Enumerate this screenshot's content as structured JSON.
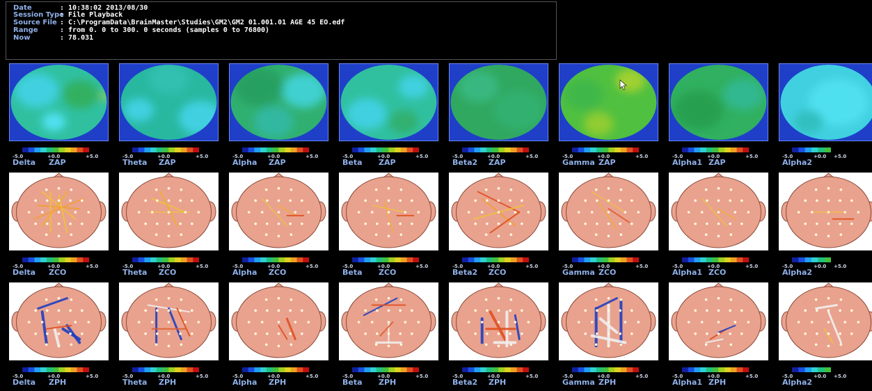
{
  "session_info": {
    "rows": [
      {
        "key": "Date",
        "value": ": 10:38:02 2013/08/30"
      },
      {
        "key": "Session Type",
        "value": ": File Playback"
      },
      {
        "key": "Source File",
        "value": ": C:\\ProgramData\\BrainMaster\\Studies\\GM2\\GM2 01.001.01 AGE 45  EO.edf"
      },
      {
        "key": "Range",
        "value": ": from 0.  0 to 300.  0 seconds (samples 0 to 76800)"
      },
      {
        "key": "Now",
        "value": ": 78.031"
      }
    ]
  },
  "scale": {
    "min": "-5.0",
    "mid": "+0.0",
    "max": "+5.0"
  },
  "bands": [
    "Delta",
    "Theta",
    "Alpha",
    "Beta",
    "Beta2",
    "Gamma",
    "Alpha1",
    "Alpha2"
  ],
  "rows": [
    {
      "metric": "ZAP",
      "kind": "topomap"
    },
    {
      "metric": "ZCO",
      "kind": "head"
    },
    {
      "metric": "ZPH",
      "kind": "head"
    }
  ],
  "colors": {
    "label": "#8fb0e8",
    "topo_background": "#1f3fc9",
    "head_skin": "#e9a28e",
    "head_outline": "#8a4a3a",
    "colormap": [
      "#1020a0",
      "#1a50e0",
      "#20a0f0",
      "#30d0d0",
      "#20c080",
      "#40c040",
      "#a0d020",
      "#e0d020",
      "#f0a020",
      "#e05020",
      "#c01010"
    ]
  },
  "topomaps": [
    {
      "band": "Delta",
      "base": "#30c0a0",
      "blobs": [
        [
          "#40d0e0",
          0.28,
          0.35,
          0.22
        ],
        [
          "#50e0f0",
          0.45,
          0.75,
          0.12
        ],
        [
          "#30b060",
          0.72,
          0.4,
          0.18
        ],
        [
          "#a0d040",
          0.97,
          0.42,
          0.05
        ]
      ]
    },
    {
      "band": "Theta",
      "base": "#28b8a0",
      "blobs": [
        [
          "#40d0e0",
          0.82,
          0.7,
          0.22
        ],
        [
          "#40d0e0",
          0.2,
          0.6,
          0.15
        ],
        [
          "#30c0b0",
          0.5,
          0.2,
          0.2
        ]
      ]
    },
    {
      "band": "Alpha",
      "base": "#30b070",
      "blobs": [
        [
          "#40d0d0",
          0.75,
          0.35,
          0.22
        ],
        [
          "#28a060",
          0.3,
          0.3,
          0.25
        ],
        [
          "#30b8a0",
          0.45,
          0.75,
          0.2
        ]
      ]
    },
    {
      "band": "Beta",
      "base": "#30c0a0",
      "blobs": [
        [
          "#40d0e0",
          0.28,
          0.65,
          0.2
        ],
        [
          "#40d0e0",
          0.75,
          0.3,
          0.15
        ],
        [
          "#30b070",
          0.65,
          0.75,
          0.15
        ]
      ]
    },
    {
      "band": "Beta2",
      "base": "#30a860",
      "blobs": [
        [
          "#38b880",
          0.3,
          0.3,
          0.2
        ],
        [
          "#30b070",
          0.7,
          0.6,
          0.25
        ]
      ]
    },
    {
      "band": "Gamma",
      "base": "#50c040",
      "blobs": [
        [
          "#a0d030",
          0.72,
          0.22,
          0.15
        ],
        [
          "#90cc30",
          0.4,
          0.78,
          0.15
        ],
        [
          "#40b848",
          0.25,
          0.4,
          0.2
        ]
      ]
    },
    {
      "band": "Alpha1",
      "base": "#30b060",
      "blobs": [
        [
          "#30b890",
          0.75,
          0.4,
          0.2
        ],
        [
          "#28a050",
          0.3,
          0.6,
          0.25
        ]
      ]
    },
    {
      "band": "Alpha2",
      "base": "#40d0e0",
      "blobs": [
        [
          "#50e0f0",
          0.6,
          0.5,
          0.3
        ],
        [
          "#30c0c0",
          0.3,
          0.75,
          0.15
        ]
      ]
    }
  ],
  "connections": {
    "ZCO": [
      {
        "band": "Delta",
        "lines": [
          [
            0.3,
            0.2,
            0.7,
            0.6,
            "#f0c040",
            2
          ],
          [
            0.25,
            0.4,
            0.75,
            0.45,
            "#f0a030",
            2
          ],
          [
            0.4,
            0.2,
            0.4,
            0.8,
            "#f0c040",
            2
          ],
          [
            0.6,
            0.2,
            0.3,
            0.7,
            "#f0b030",
            2
          ],
          [
            0.2,
            0.6,
            0.8,
            0.3,
            "#f0a040",
            2
          ],
          [
            0.5,
            0.25,
            0.6,
            0.8,
            "#f0c040",
            2
          ]
        ]
      },
      {
        "band": "Theta",
        "lines": [
          [
            0.3,
            0.3,
            0.7,
            0.5,
            "#f0c040",
            2
          ],
          [
            0.4,
            0.2,
            0.6,
            0.7,
            "#f0b030",
            2
          ],
          [
            0.25,
            0.5,
            0.75,
            0.5,
            "#f0c040",
            1.5
          ]
        ]
      },
      {
        "band": "Alpha",
        "lines": [
          [
            0.3,
            0.3,
            0.6,
            0.7,
            "#f0c040",
            1.5
          ],
          [
            0.5,
            0.4,
            0.7,
            0.55,
            "#f0b030",
            1.5
          ],
          [
            0.6,
            0.55,
            0.8,
            0.55,
            "#e05020",
            2
          ]
        ]
      },
      {
        "band": "Beta",
        "lines": [
          [
            0.3,
            0.4,
            0.7,
            0.5,
            "#f0c040",
            1.5
          ],
          [
            0.45,
            0.35,
            0.55,
            0.8,
            "#f0b030",
            1.5
          ],
          [
            0.6,
            0.55,
            0.8,
            0.55,
            "#e05020",
            2
          ]
        ]
      },
      {
        "band": "Beta2",
        "lines": [
          [
            0.25,
            0.2,
            0.75,
            0.5,
            "#e05020",
            2
          ],
          [
            0.3,
            0.3,
            0.7,
            0.7,
            "#f0a030",
            2
          ],
          [
            0.2,
            0.6,
            0.8,
            0.4,
            "#f0c040",
            2
          ],
          [
            0.4,
            0.8,
            0.75,
            0.5,
            "#e05020",
            2
          ]
        ]
      },
      {
        "band": "Gamma",
        "lines": [
          [
            0.3,
            0.2,
            0.7,
            0.5,
            "#f0c040",
            1.5
          ],
          [
            0.5,
            0.45,
            0.75,
            0.65,
            "#e06030",
            2
          ],
          [
            0.35,
            0.3,
            0.6,
            0.75,
            "#f0b030",
            1.5
          ]
        ]
      },
      {
        "band": "Alpha1",
        "lines": [
          [
            0.3,
            0.3,
            0.6,
            0.7,
            "#f0c040",
            1.5
          ],
          [
            0.5,
            0.45,
            0.7,
            0.6,
            "#f0b030",
            1.5
          ]
        ]
      },
      {
        "band": "Alpha2",
        "lines": [
          [
            0.3,
            0.5,
            0.7,
            0.5,
            "#f0c040",
            1.5
          ],
          [
            0.55,
            0.6,
            0.8,
            0.6,
            "#e05020",
            2
          ]
        ]
      }
    ],
    "ZPH": [
      {
        "band": "Delta",
        "lines": [
          [
            0.25,
            0.3,
            0.6,
            0.15,
            "#2040c0",
            3
          ],
          [
            0.3,
            0.35,
            0.35,
            0.8,
            "#2040c0",
            4
          ],
          [
            0.55,
            0.6,
            0.75,
            0.75,
            "#2040c0",
            4
          ],
          [
            0.45,
            0.6,
            0.5,
            0.85,
            "#f0f0f0",
            4
          ],
          [
            0.6,
            0.55,
            0.75,
            0.8,
            "#2040c0",
            4
          ],
          [
            0.35,
            0.6,
            0.65,
            0.55,
            "#e05020",
            2
          ]
        ]
      },
      {
        "band": "Theta",
        "lines": [
          [
            0.25,
            0.25,
            0.75,
            0.35,
            "#f0f0f0",
            2
          ],
          [
            0.35,
            0.3,
            0.35,
            0.8,
            "#2040c0",
            3
          ],
          [
            0.5,
            0.3,
            0.65,
            0.75,
            "#2040c0",
            3
          ],
          [
            0.3,
            0.6,
            0.7,
            0.6,
            "#e06030",
            2
          ],
          [
            0.6,
            0.3,
            0.75,
            0.7,
            "#e05020",
            2
          ]
        ]
      },
      {
        "band": "Alpha",
        "lines": [
          [
            0.5,
            0.55,
            0.6,
            0.75,
            "#e05020",
            2
          ],
          [
            0.6,
            0.45,
            0.7,
            0.75,
            "#e05020",
            3
          ]
        ]
      },
      {
        "band": "Beta",
        "lines": [
          [
            0.2,
            0.4,
            0.6,
            0.15,
            "#2040c0",
            2
          ],
          [
            0.3,
            0.25,
            0.7,
            0.25,
            "#e05020",
            2
          ],
          [
            0.5,
            0.5,
            0.5,
            0.8,
            "#f0f0f0",
            2
          ],
          [
            0.35,
            0.8,
            0.65,
            0.8,
            "#f0f0f0",
            3
          ],
          [
            0.4,
            0.7,
            0.55,
            0.5,
            "#e06030",
            2
          ]
        ]
      },
      {
        "band": "Beta2",
        "lines": [
          [
            0.3,
            0.45,
            0.3,
            0.8,
            "#2040c0",
            4
          ],
          [
            0.4,
            0.35,
            0.6,
            0.8,
            "#e05020",
            4
          ],
          [
            0.6,
            0.35,
            0.6,
            0.85,
            "#f0f0f0",
            4
          ],
          [
            0.35,
            0.6,
            0.7,
            0.6,
            "#e05020",
            3
          ],
          [
            0.7,
            0.4,
            0.75,
            0.75,
            "#2040c0",
            3
          ],
          [
            0.45,
            0.8,
            0.7,
            0.8,
            "#f0f0f0",
            4
          ]
        ]
      },
      {
        "band": "Gamma",
        "lines": [
          [
            0.35,
            0.3,
            0.6,
            0.15,
            "#2040c0",
            3
          ],
          [
            0.35,
            0.3,
            0.35,
            0.85,
            "#2040c0",
            4
          ],
          [
            0.5,
            0.25,
            0.5,
            0.85,
            "#f0f0f0",
            4
          ],
          [
            0.65,
            0.2,
            0.65,
            0.8,
            "#2040c0",
            4
          ],
          [
            0.3,
            0.7,
            0.7,
            0.8,
            "#f0f0f0",
            4
          ],
          [
            0.4,
            0.45,
            0.6,
            0.65,
            "#f0f0f0",
            4
          ]
        ]
      },
      {
        "band": "Alpha1",
        "lines": [
          [
            0.4,
            0.75,
            0.6,
            0.6,
            "#e05020",
            2
          ],
          [
            0.5,
            0.65,
            0.7,
            0.55,
            "#2040c0",
            2
          ],
          [
            0.35,
            0.8,
            0.55,
            0.75,
            "#f0f0f0",
            2
          ]
        ]
      },
      {
        "band": "Alpha2",
        "lines": [
          [
            0.35,
            0.3,
            0.6,
            0.25,
            "#f0f0f0",
            3
          ],
          [
            0.5,
            0.35,
            0.65,
            0.8,
            "#f0f0f0",
            3
          ],
          [
            0.45,
            0.6,
            0.55,
            0.8,
            "#f0c040",
            2
          ]
        ]
      }
    ]
  }
}
